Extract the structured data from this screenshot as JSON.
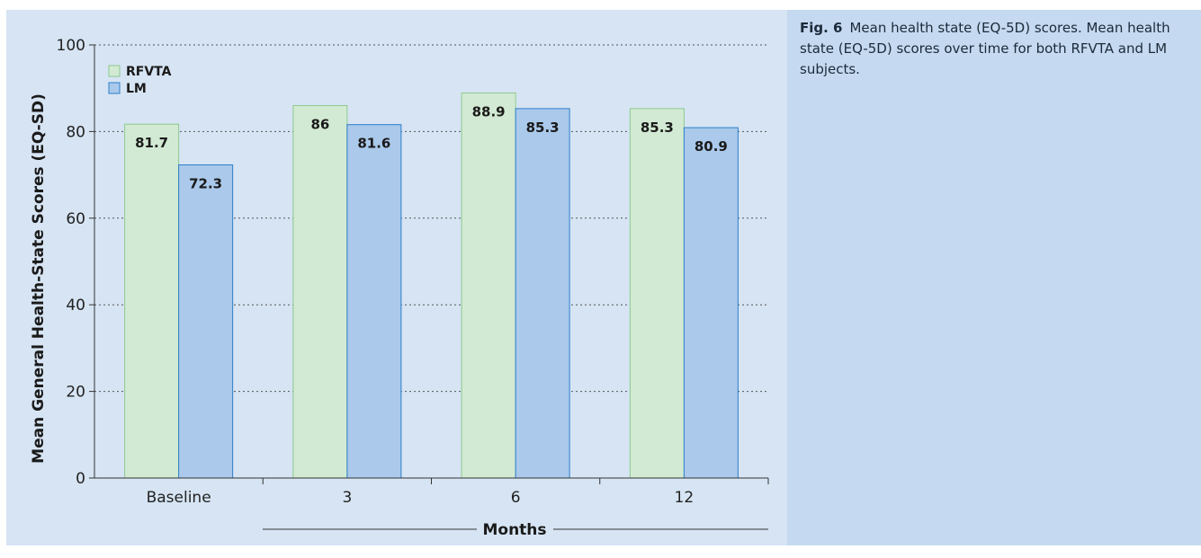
{
  "caption": {
    "label": "Fig. 6",
    "text": "Mean health state (EQ-5D) scores. Mean health state (EQ-5D) scores over time for both RFVTA and LM subjects."
  },
  "chart_data": {
    "type": "bar",
    "categories": [
      "Baseline",
      "3",
      "6",
      "12"
    ],
    "series": [
      {
        "name": "RFVTA",
        "values": [
          81.7,
          86,
          88.9,
          85.3
        ],
        "labels": [
          "81.7",
          "86",
          "88.9",
          "85.3"
        ],
        "color": "#d2ead3",
        "stroke": "#8ec98f"
      },
      {
        "name": "LM",
        "values": [
          72.3,
          81.6,
          85.3,
          80.9
        ],
        "labels": [
          "72.3",
          "81.6",
          "85.3",
          "80.9"
        ],
        "color": "#aac9eb",
        "stroke": "#2f7fc9"
      }
    ],
    "xlabel": "Months",
    "ylabel": "Mean General Health-State Scores (EQ-SD)",
    "ylim": [
      0,
      100
    ],
    "yticks": [
      "0",
      "20",
      "40",
      "60",
      "80",
      "100"
    ],
    "grid": "horizontal dotted",
    "legend_position": "top-left"
  }
}
